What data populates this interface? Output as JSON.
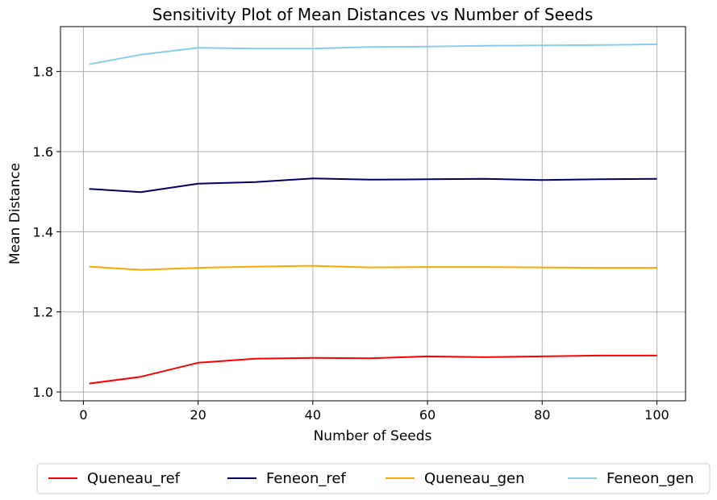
{
  "chart_data": {
    "type": "line",
    "title": "Sensitivity Plot of Mean Distances vs Number of Seeds",
    "xlabel": "Number of Seeds",
    "ylabel": "Mean Distance",
    "xlim": [
      -4,
      105
    ],
    "ylim": [
      0.978,
      1.912
    ],
    "xticks": [
      0,
      20,
      40,
      60,
      80,
      100
    ],
    "yticks": [
      1.0,
      1.2,
      1.4,
      1.6,
      1.8
    ],
    "xtick_labels": [
      "0",
      "20",
      "40",
      "60",
      "80",
      "100"
    ],
    "ytick_labels": [
      "1.0",
      "1.2",
      "1.4",
      "1.6",
      "1.8"
    ],
    "grid": true,
    "legend_position": "bottom-outside",
    "x": [
      1,
      10,
      20,
      30,
      40,
      50,
      60,
      70,
      80,
      90,
      100
    ],
    "series": [
      {
        "name": "Queneau_ref",
        "color": "#ff0000",
        "values": [
          1.021,
          1.038,
          1.073,
          1.083,
          1.085,
          1.084,
          1.089,
          1.087,
          1.089,
          1.091,
          1.091
        ]
      },
      {
        "name": "Feneon_ref",
        "color": "#000066",
        "values": [
          1.507,
          1.499,
          1.52,
          1.524,
          1.533,
          1.53,
          1.531,
          1.532,
          1.529,
          1.531,
          1.532
        ]
      },
      {
        "name": "Queneau_gen",
        "color": "#ffa500",
        "values": [
          1.313,
          1.305,
          1.31,
          1.313,
          1.315,
          1.311,
          1.312,
          1.312,
          1.311,
          1.31,
          1.31
        ]
      },
      {
        "name": "Feneon_gen",
        "color": "#87ceeb",
        "values": [
          1.818,
          1.842,
          1.859,
          1.857,
          1.857,
          1.861,
          1.862,
          1.864,
          1.865,
          1.866,
          1.868
        ]
      }
    ]
  }
}
